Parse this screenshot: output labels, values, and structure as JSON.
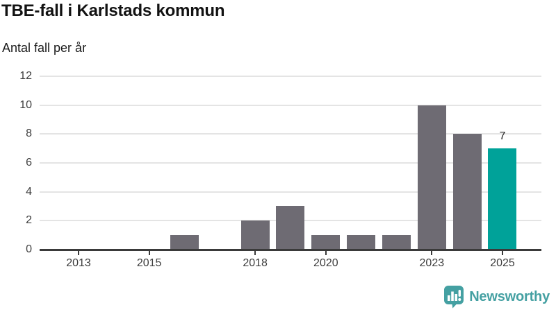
{
  "header": {
    "title": "TBE-fall i Karlstads kommun",
    "subtitle": "Antal fall per år"
  },
  "chart_data": {
    "type": "bar",
    "title": "TBE-fall i Karlstads kommun",
    "ylabel": "Antal fall per år",
    "xlabel": "",
    "categories": [
      "2013",
      "2014",
      "2015",
      "2016",
      "2017",
      "2018",
      "2019",
      "2020",
      "2021",
      "2022",
      "2023",
      "2024",
      "2025"
    ],
    "values": [
      0,
      0,
      0,
      1,
      0,
      2,
      3,
      1,
      1,
      1,
      10,
      8,
      7
    ],
    "x_tick_labels": [
      "2013",
      "2015",
      "2018",
      "2020",
      "2023",
      "2025"
    ],
    "y_ticks": [
      0,
      2,
      4,
      6,
      8,
      10,
      12
    ],
    "ylim": [
      0,
      12
    ],
    "grid": true,
    "legend": "none",
    "highlight_index": 12,
    "data_labels": [
      {
        "index": 12,
        "text": "7"
      }
    ],
    "colors": {
      "bar": "#6e6b73",
      "highlight": "#00a299",
      "gridline": "#e4e4e4",
      "axis": "#3a3a3a",
      "tick_text": "#3d3d3d"
    }
  },
  "footer": {
    "brand": "Newsworthy",
    "brand_color": "#44a0a2",
    "logo_icon": "newsworthy-bar-chart-bubble-icon"
  }
}
